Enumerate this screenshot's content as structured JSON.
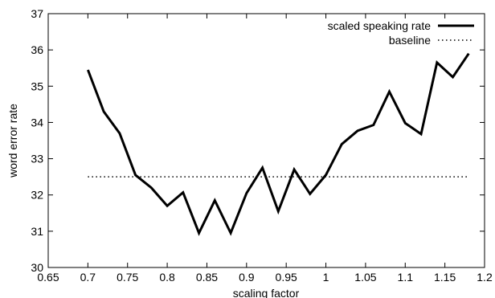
{
  "chart_data": {
    "type": "line",
    "title": "",
    "xlabel": "scaling factor",
    "ylabel": "word error rate",
    "xlim": [
      0.65,
      1.2
    ],
    "ylim": [
      30,
      37
    ],
    "x_ticks": [
      0.65,
      0.7,
      0.75,
      0.8,
      0.85,
      0.9,
      0.95,
      1.0,
      1.05,
      1.1,
      1.15,
      1.2
    ],
    "x_tick_labels": [
      "0.65",
      "0.7",
      "0.75",
      "0.8",
      "0.85",
      "0.9",
      "0.95",
      "1",
      "1.05",
      "1.1",
      "1.15",
      "1.2"
    ],
    "y_ticks": [
      30,
      31,
      32,
      33,
      34,
      35,
      36,
      37
    ],
    "y_tick_labels": [
      "30",
      "31",
      "32",
      "33",
      "34",
      "35",
      "36",
      "37"
    ],
    "grid": false,
    "legend_position": "top-right",
    "series": [
      {
        "name": "scaled speaking rate",
        "style": "solid",
        "color": "#000000",
        "x": [
          0.7,
          0.72,
          0.74,
          0.76,
          0.78,
          0.8,
          0.82,
          0.84,
          0.86,
          0.88,
          0.9,
          0.92,
          0.94,
          0.96,
          0.98,
          1.0,
          1.02,
          1.04,
          1.06,
          1.08,
          1.1,
          1.12,
          1.14,
          1.16,
          1.18
        ],
        "y": [
          35.45,
          34.3,
          33.7,
          32.55,
          32.2,
          31.7,
          32.07,
          30.95,
          31.85,
          30.95,
          32.05,
          32.75,
          31.55,
          32.7,
          32.03,
          32.55,
          33.4,
          33.77,
          33.93,
          34.85,
          33.98,
          33.68,
          35.65,
          35.25,
          35.9
        ]
      },
      {
        "name": "baseline",
        "style": "dotted",
        "color": "#000000",
        "x": [
          0.7,
          1.18
        ],
        "y": [
          32.5,
          32.5
        ]
      }
    ]
  }
}
